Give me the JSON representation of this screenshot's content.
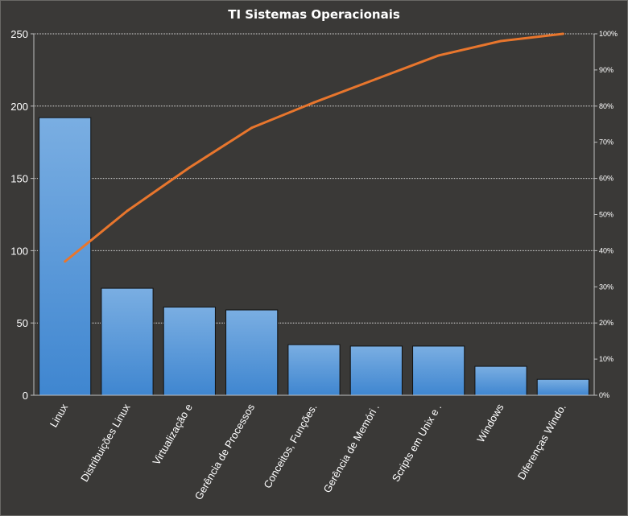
{
  "chart_data": {
    "type": "bar",
    "title": "TI Sistemas  Operacionais",
    "categories": [
      "Linux",
      "Distribuições Linux",
      "Virtualização e",
      "Gerência de Processos",
      "Conceitos, Funções.",
      "Gerência de Memóri .",
      "Scripts em Unix e .",
      "Windows",
      "Diferenças Windo."
    ],
    "series": [
      {
        "type": "bar",
        "values": [
          192,
          74,
          61,
          59,
          35,
          34,
          34,
          20,
          11
        ]
      },
      {
        "type": "line",
        "axis": "right",
        "values": [
          0.37,
          0.51,
          0.63,
          0.74,
          0.81,
          0.875,
          0.94,
          0.98,
          1.0
        ]
      }
    ],
    "yleft": {
      "ylim": [
        0,
        250
      ],
      "ticks": [
        "0",
        "50",
        "100",
        "150",
        "200",
        "250"
      ]
    },
    "yright": {
      "ylim": [
        0,
        1
      ],
      "ticks": [
        "0%",
        "10%",
        "20%",
        "30%",
        "40%",
        "50%",
        "60%",
        "70%",
        "80%",
        "90%",
        "100%"
      ]
    },
    "grid": true,
    "legend": "none",
    "colors": {
      "background": "#3a3937",
      "bar": "#4a8fd6",
      "bar_top": "#7aaee2",
      "line": "#e8762d",
      "grid": "#d9d9d9",
      "text": "#ffffff"
    }
  }
}
